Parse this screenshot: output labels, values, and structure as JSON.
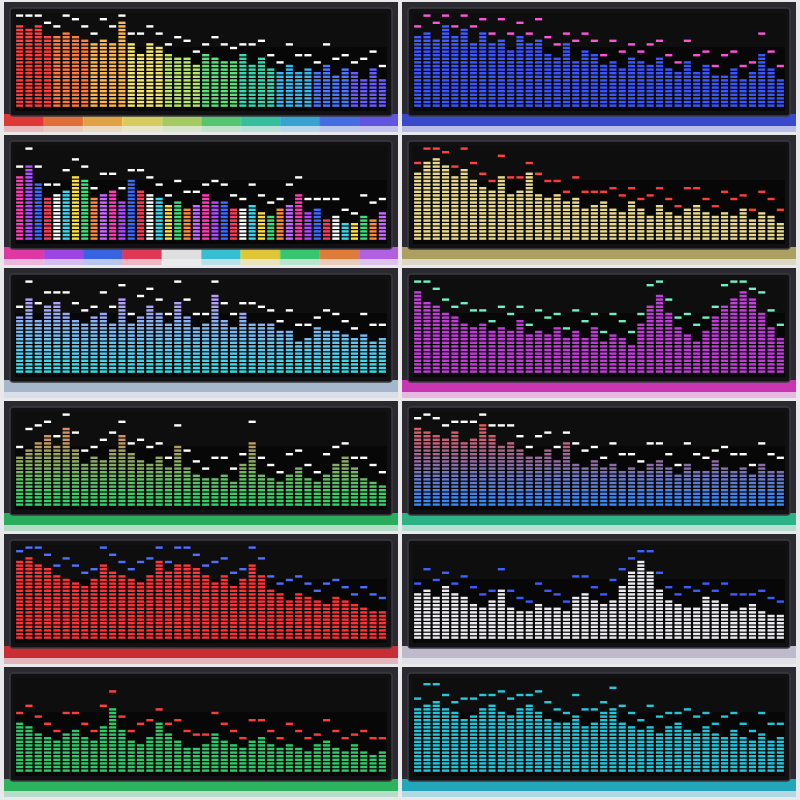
{
  "collage": {
    "panels": [
      {
        "id": "rainbow",
        "scheme": "rainbow",
        "peak": "#ffffff",
        "glow": "rainbow",
        "bars": [
          0.92,
          0.88,
          0.9,
          0.8,
          0.78,
          0.85,
          0.78,
          0.76,
          0.7,
          0.76,
          0.72,
          0.95,
          0.7,
          0.6,
          0.72,
          0.66,
          0.6,
          0.54,
          0.58,
          0.48,
          0.6,
          0.56,
          0.5,
          0.52,
          0.6,
          0.46,
          0.56,
          0.42,
          0.4,
          0.48,
          0.38,
          0.45,
          0.4,
          0.48,
          0.36,
          0.42,
          0.38,
          0.3,
          0.44,
          0.32
        ]
      },
      {
        "id": "blue",
        "scheme": "solid",
        "color": "#3a56ff",
        "peak": "#ff4fd8",
        "glow": "#3d55ff",
        "bars": [
          0.8,
          0.82,
          0.75,
          0.9,
          0.78,
          0.88,
          0.7,
          0.85,
          0.72,
          0.76,
          0.62,
          0.78,
          0.7,
          0.74,
          0.6,
          0.56,
          0.7,
          0.5,
          0.64,
          0.6,
          0.48,
          0.5,
          0.45,
          0.55,
          0.5,
          0.46,
          0.56,
          0.42,
          0.4,
          0.5,
          0.38,
          0.46,
          0.36,
          0.34,
          0.44,
          0.3,
          0.38,
          0.6,
          0.42,
          0.3
        ]
      },
      {
        "id": "multicolor",
        "scheme": "multi",
        "peak": "#ffffff",
        "glow": "multi",
        "bars": [
          0.72,
          0.82,
          0.65,
          0.48,
          0.52,
          0.58,
          0.72,
          0.66,
          0.48,
          0.52,
          0.55,
          0.42,
          0.66,
          0.56,
          0.5,
          0.46,
          0.4,
          0.42,
          0.36,
          0.4,
          0.5,
          0.42,
          0.44,
          0.36,
          0.34,
          0.38,
          0.32,
          0.28,
          0.34,
          0.38,
          0.5,
          0.3,
          0.36,
          0.22,
          0.26,
          0.2,
          0.18,
          0.28,
          0.24,
          0.3
        ]
      },
      {
        "id": "yellow",
        "scheme": "solid",
        "color": "#e9d98a",
        "peak": "#ff3a3a",
        "glow": "#d8c870",
        "bars": [
          0.75,
          0.86,
          0.9,
          0.82,
          0.72,
          0.78,
          0.68,
          0.6,
          0.58,
          0.7,
          0.5,
          0.56,
          0.74,
          0.5,
          0.46,
          0.52,
          0.42,
          0.48,
          0.34,
          0.38,
          0.44,
          0.36,
          0.3,
          0.42,
          0.34,
          0.28,
          0.38,
          0.3,
          0.26,
          0.34,
          0.4,
          0.3,
          0.26,
          0.32,
          0.28,
          0.36,
          0.24,
          0.3,
          0.26,
          0.2
        ]
      },
      {
        "id": "aqua-pink",
        "scheme": "gradient",
        "top": "#d88cff",
        "bottom": "#2ee0e8",
        "peak": "#ffffff",
        "glow": "#cfe8ff",
        "bars": [
          0.62,
          0.82,
          0.6,
          0.74,
          0.8,
          0.68,
          0.6,
          0.56,
          0.62,
          0.66,
          0.58,
          0.82,
          0.56,
          0.62,
          0.74,
          0.66,
          0.58,
          0.8,
          0.62,
          0.52,
          0.56,
          0.86,
          0.6,
          0.52,
          0.66,
          0.56,
          0.58,
          0.54,
          0.48,
          0.46,
          0.36,
          0.4,
          0.5,
          0.46,
          0.48,
          0.44,
          0.38,
          0.42,
          0.36,
          0.4
        ]
      },
      {
        "id": "magenta",
        "scheme": "solid",
        "color": "#c13bd8",
        "peak": "#6af0c0",
        "glow": "#ff3be0",
        "bars": [
          0.92,
          0.78,
          0.74,
          0.68,
          0.62,
          0.58,
          0.52,
          0.56,
          0.48,
          0.5,
          0.46,
          0.6,
          0.44,
          0.48,
          0.42,
          0.52,
          0.38,
          0.46,
          0.4,
          0.5,
          0.36,
          0.44,
          0.38,
          0.32,
          0.56,
          0.76,
          0.88,
          0.68,
          0.5,
          0.42,
          0.36,
          0.48,
          0.62,
          0.76,
          0.82,
          0.9,
          0.84,
          0.68,
          0.5,
          0.4
        ]
      },
      {
        "id": "green-yellow",
        "scheme": "gradient",
        "top": "#ff7a5a",
        "bottom": "#29d86a",
        "peak": "#ffffff",
        "glow": "#29d86a",
        "bars": [
          0.55,
          0.62,
          0.7,
          0.8,
          0.68,
          0.88,
          0.62,
          0.48,
          0.56,
          0.52,
          0.62,
          0.78,
          0.6,
          0.52,
          0.48,
          0.58,
          0.44,
          0.66,
          0.42,
          0.36,
          0.32,
          0.3,
          0.36,
          0.28,
          0.46,
          0.7,
          0.34,
          0.3,
          0.28,
          0.36,
          0.42,
          0.3,
          0.28,
          0.34,
          0.46,
          0.56,
          0.44,
          0.3,
          0.26,
          0.22
        ]
      },
      {
        "id": "rgb-mix",
        "scheme": "gradient",
        "top": "#ff4a3a",
        "bottom": "#2e8cff",
        "peak": "#ffffff",
        "glow": "#2ee0a0",
        "bars": [
          0.88,
          0.82,
          0.78,
          0.74,
          0.84,
          0.7,
          0.76,
          0.92,
          0.8,
          0.66,
          0.72,
          0.62,
          0.56,
          0.58,
          0.62,
          0.52,
          0.7,
          0.48,
          0.44,
          0.5,
          0.42,
          0.46,
          0.38,
          0.44,
          0.4,
          0.48,
          0.5,
          0.42,
          0.36,
          0.46,
          0.38,
          0.4,
          0.5,
          0.44,
          0.38,
          0.42,
          0.36,
          0.48,
          0.4,
          0.38
        ]
      },
      {
        "id": "red",
        "scheme": "solid",
        "color": "#ff3036",
        "peak": "#4a6cff",
        "glow": "#ff3036",
        "bars": [
          0.86,
          0.9,
          0.82,
          0.8,
          0.72,
          0.66,
          0.62,
          0.6,
          0.68,
          0.82,
          0.76,
          0.7,
          0.66,
          0.64,
          0.7,
          0.86,
          0.74,
          0.82,
          0.84,
          0.8,
          0.7,
          0.64,
          0.72,
          0.6,
          0.66,
          0.82,
          0.72,
          0.56,
          0.5,
          0.44,
          0.52,
          0.48,
          0.42,
          0.4,
          0.48,
          0.44,
          0.38,
          0.36,
          0.32,
          0.3
        ]
      },
      {
        "id": "white",
        "scheme": "solid",
        "color": "#ececf0",
        "peak": "#3a5aff",
        "glow": "#f0eaff",
        "bars": [
          0.52,
          0.56,
          0.48,
          0.6,
          0.52,
          0.46,
          0.38,
          0.34,
          0.42,
          0.54,
          0.36,
          0.32,
          0.3,
          0.4,
          0.36,
          0.34,
          0.3,
          0.46,
          0.5,
          0.42,
          0.38,
          0.44,
          0.6,
          0.74,
          0.88,
          0.76,
          0.56,
          0.44,
          0.4,
          0.36,
          0.34,
          0.48,
          0.42,
          0.38,
          0.3,
          0.36,
          0.4,
          0.32,
          0.28,
          0.26
        ]
      },
      {
        "id": "green-red",
        "scheme": "solid",
        "color": "#2fc96a",
        "peak": "#ff3a3a",
        "glow": "#2fe070",
        "bars": [
          0.56,
          0.52,
          0.44,
          0.38,
          0.34,
          0.42,
          0.48,
          0.4,
          0.36,
          0.5,
          0.72,
          0.46,
          0.34,
          0.3,
          0.38,
          0.54,
          0.42,
          0.36,
          0.28,
          0.26,
          0.32,
          0.44,
          0.36,
          0.3,
          0.28,
          0.34,
          0.4,
          0.3,
          0.26,
          0.32,
          0.28,
          0.24,
          0.3,
          0.36,
          0.26,
          0.22,
          0.3,
          0.24,
          0.2,
          0.24
        ]
      },
      {
        "id": "cyan",
        "scheme": "solid",
        "color": "#22c5d8",
        "peak": "#22c5d8",
        "glow": "#22d0e8",
        "bars": [
          0.7,
          0.74,
          0.8,
          0.72,
          0.66,
          0.6,
          0.64,
          0.72,
          0.76,
          0.68,
          0.62,
          0.7,
          0.74,
          0.66,
          0.6,
          0.58,
          0.54,
          0.62,
          0.5,
          0.56,
          0.66,
          0.72,
          0.58,
          0.5,
          0.46,
          0.52,
          0.44,
          0.5,
          0.56,
          0.48,
          0.42,
          0.5,
          0.44,
          0.38,
          0.46,
          0.4,
          0.36,
          0.42,
          0.34,
          0.38
        ]
      }
    ]
  }
}
